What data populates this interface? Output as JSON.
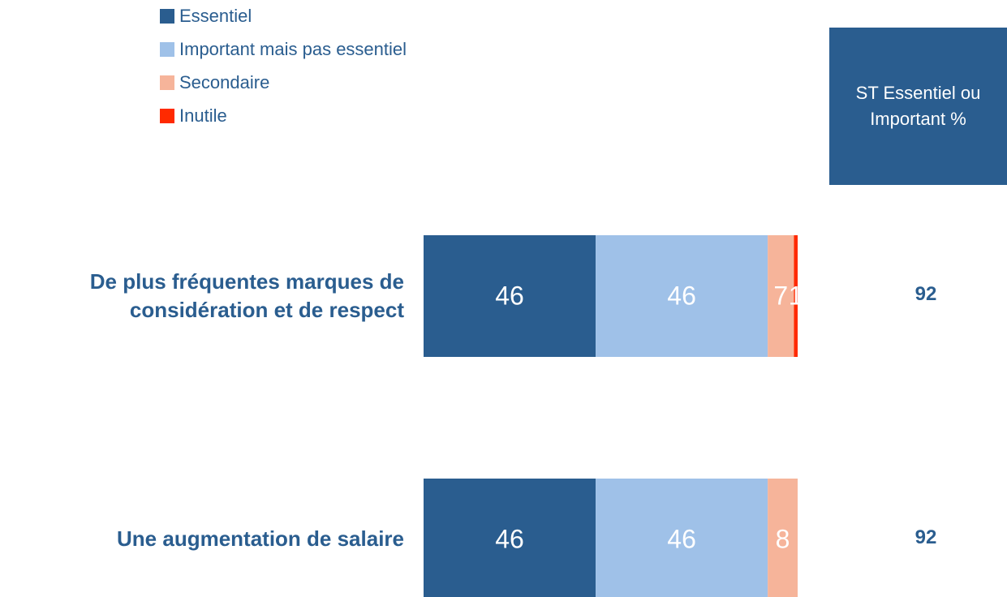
{
  "chart_data": {
    "type": "stacked-bar-horizontal",
    "categories": [
      "De plus fréquentes marques de considération et de respect",
      "Une augmentation de salaire"
    ],
    "series": [
      {
        "name": "Essentiel",
        "color": "#2a5d8f",
        "values": [
          46,
          46
        ]
      },
      {
        "name": "Important mais pas essentiel",
        "color": "#9fc1e8",
        "values": [
          46,
          46
        ]
      },
      {
        "name": "Secondaire",
        "color": "#f6b49a",
        "values": [
          7,
          8
        ]
      },
      {
        "name": "Inutile",
        "color": "#ff2a00",
        "values": [
          1,
          null
        ]
      }
    ],
    "xlim": [
      0,
      100
    ],
    "totals": {
      "title": "ST Essentiel ou Important %",
      "values": [
        92,
        92
      ]
    }
  }
}
